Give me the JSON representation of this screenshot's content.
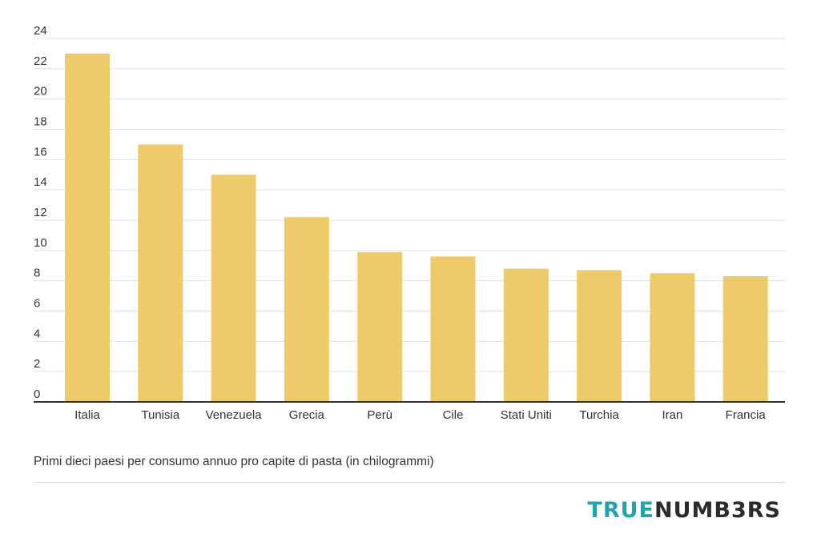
{
  "chart_data": {
    "type": "bar",
    "categories": [
      "Italia",
      "Tunisia",
      "Venezuela",
      "Grecia",
      "Perù",
      "Cile",
      "Stati Uniti",
      "Turchia",
      "Iran",
      "Francia"
    ],
    "values": [
      23,
      17,
      15,
      12.2,
      9.9,
      9.6,
      8.8,
      8.7,
      8.5,
      8.3
    ],
    "ylim": [
      0,
      24
    ],
    "yticks": [
      0,
      2,
      4,
      6,
      8,
      10,
      12,
      14,
      16,
      18,
      20,
      22,
      24
    ],
    "grid": true,
    "bar_color": "#eecb6a",
    "title": "",
    "xlabel": "",
    "ylabel": ""
  },
  "caption": "Primi dieci paesi per consumo annuo pro capite di pasta (in chilogrammi)",
  "brand": {
    "part1": "TRUE",
    "part2": "NUMB3RS",
    "color1": "#1fa5ad",
    "color2": "#2b2b2b"
  }
}
